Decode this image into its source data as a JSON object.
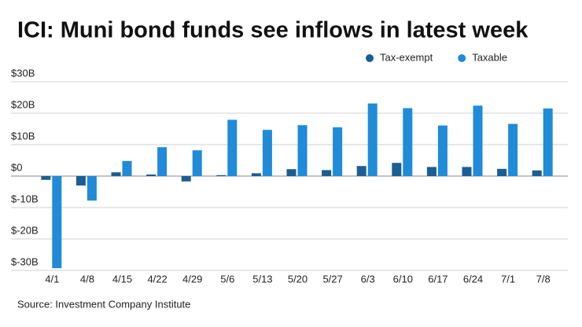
{
  "chart_data": {
    "type": "bar",
    "title": "ICI: Muni bond funds see inflows in latest week",
    "source": "Source: Investment Company Institute",
    "categories": [
      "4/1",
      "4/8",
      "4/15",
      "4/22",
      "4/29",
      "5/6",
      "5/13",
      "5/20",
      "5/27",
      "6/3",
      "6/10",
      "6/17",
      "6/24",
      "7/1",
      "7/8"
    ],
    "series": [
      {
        "name": "Tax-exempt",
        "color": "#1b5e93",
        "values": [
          -1.2,
          -3,
          1.2,
          0.5,
          -1.7,
          0.3,
          0.9,
          2.2,
          1.9,
          3.2,
          4.2,
          2.9,
          2.9,
          2.3,
          1.8
        ]
      },
      {
        "name": "Taxable",
        "color": "#208bd8",
        "values": [
          -29.3,
          -7.8,
          4.8,
          9.2,
          8.2,
          17.9,
          14.7,
          16.2,
          15.5,
          23.1,
          21.6,
          16.1,
          22.4,
          16.6,
          21.5
        ]
      }
    ],
    "ylim": [
      -30,
      30
    ],
    "yticks": [
      {
        "value": -30,
        "label": "$-30B"
      },
      {
        "value": -20,
        "label": "$-20B"
      },
      {
        "value": -10,
        "label": "$-10B"
      },
      {
        "value": 0,
        "label": "$0"
      },
      {
        "value": 10,
        "label": "$10B"
      },
      {
        "value": 20,
        "label": "$20B"
      },
      {
        "value": 30,
        "label": "$30B"
      }
    ],
    "grid": true,
    "legend": "top-right"
  }
}
